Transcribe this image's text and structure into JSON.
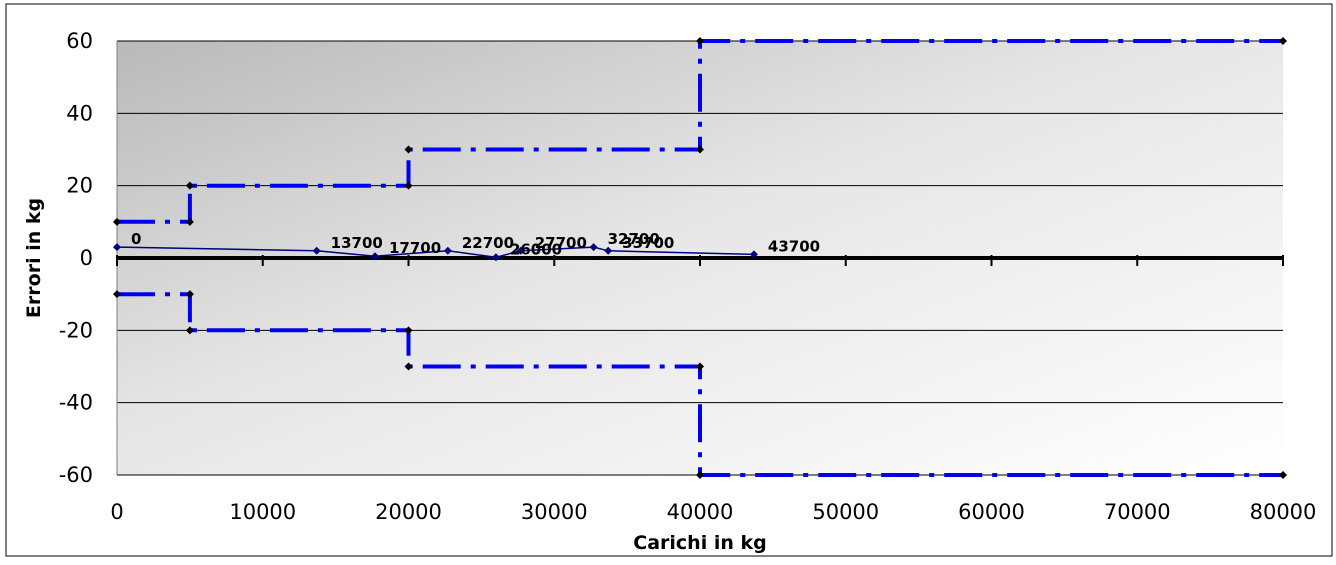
{
  "chart_data": {
    "type": "line",
    "title": "",
    "xlabel": "Carichi in kg",
    "ylabel": "Errori in kg",
    "xlim": [
      0,
      80000
    ],
    "ylim": [
      -60,
      60
    ],
    "x_ticks": [
      "0",
      "10000",
      "20000",
      "30000",
      "40000",
      "50000",
      "60000",
      "70000",
      "80000"
    ],
    "y_ticks": [
      "60",
      "40",
      "20",
      "0",
      "-20",
      "-40",
      "-60"
    ],
    "grid": "horizontal",
    "legend": "none",
    "series": [
      {
        "color": "#0000ee",
        "style": "dash-dot",
        "points": [
          [
            0,
            10
          ],
          [
            5000,
            10
          ],
          [
            5000,
            20
          ],
          [
            20000,
            20
          ],
          [
            20000,
            30
          ],
          [
            40000,
            30
          ],
          [
            40000,
            60
          ],
          [
            80000,
            60
          ]
        ]
      },
      {
        "color": "#0000ee",
        "style": "dash-dot",
        "points": [
          [
            0,
            -10
          ],
          [
            5000,
            -10
          ],
          [
            5000,
            -20
          ],
          [
            20000,
            -20
          ],
          [
            20000,
            -30
          ],
          [
            40000,
            -30
          ],
          [
            40000,
            -60
          ],
          [
            80000,
            -60
          ]
        ]
      },
      {
        "color": "#000080",
        "style": "solid",
        "points": [
          {
            "x": 0,
            "y": 3,
            "label": "0"
          },
          {
            "x": 13700,
            "y": 2,
            "label": "13700"
          },
          {
            "x": 17700,
            "y": 0.5,
            "label": "17700"
          },
          {
            "x": 22700,
            "y": 2,
            "label": "22700"
          },
          {
            "x": 26000,
            "y": 0.2,
            "label": "26000"
          },
          {
            "x": 27700,
            "y": 2,
            "label": "27700"
          },
          {
            "x": 32700,
            "y": 3,
            "label": "32700"
          },
          {
            "x": 33700,
            "y": 2,
            "label": "33700"
          },
          {
            "x": 43700,
            "y": 1,
            "label": "43700"
          }
        ]
      }
    ]
  }
}
